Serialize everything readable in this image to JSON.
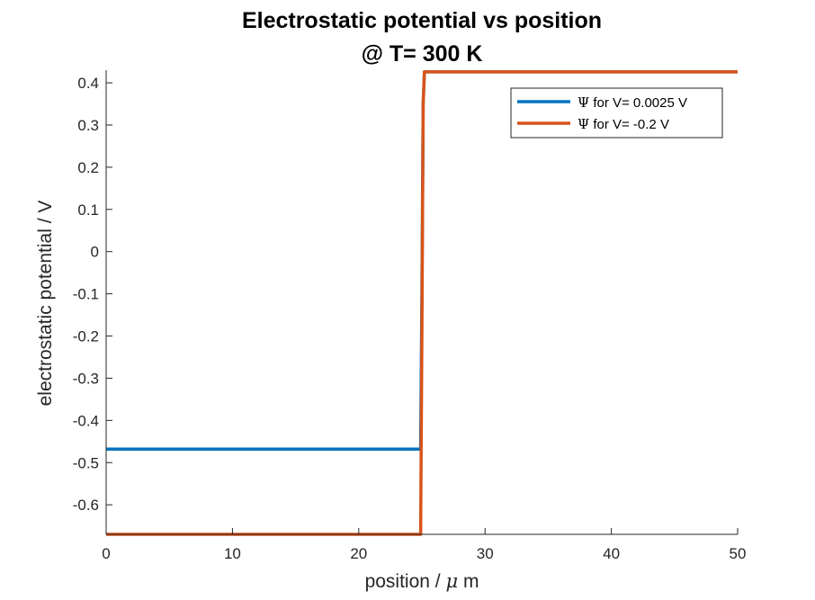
{
  "chart_data": {
    "type": "line",
    "title": [
      "Electrostatic potential vs position",
      "@ T= 300 K"
    ],
    "xlabel_prefix": "position / ",
    "xlabel_symbol": "μ",
    "xlabel_suffix": " m",
    "ylabel": "electrostatic potential / V",
    "xlim": [
      0,
      50
    ],
    "ylim": [
      -0.67,
      0.43
    ],
    "xticks": [
      0,
      10,
      20,
      30,
      40,
      50
    ],
    "xtick_labels": [
      "0",
      "10",
      "20",
      "30",
      "40",
      "50"
    ],
    "yticks": [
      0.4,
      0.3,
      0.2,
      0.1,
      0,
      -0.1,
      -0.2,
      -0.3,
      -0.4,
      -0.5,
      -0.6
    ],
    "ytick_labels": [
      "0.4",
      "0.3",
      "0.2",
      "0.1",
      "0",
      "-0.1",
      "-0.2",
      "-0.3",
      "-0.4",
      "-0.5",
      "-0.6"
    ],
    "grid": false,
    "legend_position": "top-right",
    "series": [
      {
        "name_symbol": "Ψ",
        "name_text": " for V= 0.0025 V",
        "color": "#0072BD",
        "x": [
          0,
          24.9,
          25.0,
          25.1,
          25.2,
          50
        ],
        "y": [
          -0.468,
          -0.468,
          -0.1,
          0.35,
          0.426,
          0.426
        ]
      },
      {
        "name_symbol": "Ψ",
        "name_text": " for V= -0.2 V",
        "color": "#D95319",
        "x": [
          0,
          24.9,
          25.0,
          25.1,
          25.2,
          50
        ],
        "y": [
          -0.67,
          -0.67,
          -0.2,
          0.35,
          0.426,
          0.426
        ]
      }
    ]
  }
}
